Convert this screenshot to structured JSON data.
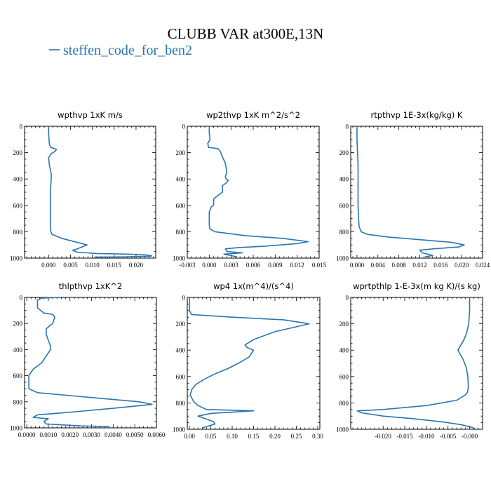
{
  "figure": {
    "title": "CLUBB VAR at300E,13N",
    "legend_label": "steffen_code_for_ben2",
    "line_color": "#2a75b0"
  },
  "chart_data": [
    {
      "type": "line",
      "title": "wpthvp  1xK m/s",
      "xlim": [
        -0.0055,
        0.0245
      ],
      "ylim": [
        0,
        1000
      ],
      "y_inverted": true,
      "xticks": [
        0.0,
        0.005,
        0.01,
        0.015,
        0.02
      ],
      "xtick_labels": [
        "0.000",
        "0.005",
        "0.010",
        "0.015",
        "0.020"
      ],
      "yticks": [
        0,
        200,
        400,
        600,
        800,
        1000
      ],
      "ytick_labels": [
        "0",
        "200",
        "400",
        "600",
        "800",
        "1000"
      ],
      "series": [
        {
          "x": [
            0.0,
            0.0,
            0.0001,
            0.0002,
            0.0005,
            0.0018,
            0.0015,
            0.0005,
            0.0,
            0.0002,
            0.0006,
            0.0006,
            0.0005,
            0.0004,
            0.0004,
            0.0004,
            0.0004,
            0.0005,
            0.0008,
            0.003,
            0.0065,
            0.0088,
            0.0065,
            0.0055,
            0.0065,
            0.011,
            0.018,
            0.022,
            0.0235,
            0.0235,
            0.0175,
            0.0105
          ],
          "y": [
            0,
            50,
            100,
            140,
            160,
            175,
            190,
            210,
            240,
            300,
            360,
            400,
            450,
            500,
            600,
            700,
            750,
            800,
            820,
            850,
            880,
            900,
            930,
            940,
            955,
            965,
            970,
            975,
            980,
            985,
            990,
            992
          ]
        }
      ]
    },
    {
      "type": "line",
      "title": "wp2thvp  1xK m^2/s^2",
      "xlim": [
        -0.003,
        0.015
      ],
      "ylim": [
        0,
        1000
      ],
      "y_inverted": true,
      "xticks": [
        -0.003,
        0.0,
        0.003,
        0.006,
        0.009,
        0.012,
        0.015
      ],
      "xtick_labels": [
        "-0.003",
        "0.000",
        "0.003",
        "0.006",
        "0.009",
        "0.012",
        "0.015"
      ],
      "yticks": [
        0,
        200,
        400,
        600,
        800,
        1000
      ],
      "ytick_labels": [
        "0",
        "200",
        "400",
        "600",
        "800",
        "1000"
      ],
      "series": [
        {
          "x": [
            0.0,
            0.0,
            0.0001,
            -0.0002,
            -0.0001,
            0.0012,
            0.0015,
            0.0017,
            0.0022,
            0.0024,
            0.0022,
            0.0023,
            0.0026,
            0.0023,
            0.0018,
            0.0018,
            0.0006,
            0.0006,
            0.0003,
            0.0,
            0.0,
            0.0,
            0.0001,
            0.0008,
            0.005,
            0.01,
            0.0135,
            0.012,
            0.0075,
            0.004,
            0.0022,
            0.0024,
            0.0045,
            0.002,
            0.0038
          ],
          "y": [
            0,
            50,
            100,
            130,
            160,
            170,
            190,
            220,
            280,
            350,
            380,
            400,
            410,
            430,
            450,
            500,
            550,
            600,
            610,
            650,
            700,
            750,
            780,
            800,
            830,
            850,
            875,
            890,
            910,
            920,
            930,
            950,
            960,
            970,
            990
          ]
        }
      ]
    },
    {
      "type": "line",
      "title": "rtpthvp  1E-3x(kg/kg) K",
      "xlim": [
        -0.0012,
        0.024
      ],
      "ylim": [
        0,
        1000
      ],
      "y_inverted": true,
      "xticks": [
        0.0,
        0.004,
        0.008,
        0.012,
        0.016,
        0.02,
        0.024
      ],
      "xtick_labels": [
        "0.000",
        "0.004",
        "0.008",
        "0.012",
        "0.016",
        "0.020",
        "0.024"
      ],
      "yticks": [
        0,
        200,
        400,
        600,
        800,
        1000
      ],
      "ytick_labels": [
        "0",
        "200",
        "400",
        "600",
        "800",
        "1000"
      ],
      "series": [
        {
          "x": [
            0.0,
            0.0,
            0.0001,
            0.0002,
            0.0002,
            0.0002,
            0.0002,
            0.0003,
            0.0004,
            0.0008,
            0.002,
            0.006,
            0.012,
            0.018,
            0.0205,
            0.0195,
            0.0145,
            0.012,
            0.0125,
            0.0145,
            0.013
          ],
          "y": [
            0,
            100,
            200,
            300,
            400,
            500,
            600,
            700,
            760,
            800,
            820,
            840,
            860,
            880,
            900,
            915,
            930,
            940,
            960,
            980,
            990
          ]
        }
      ]
    },
    {
      "type": "line",
      "title": "thlpthvp  1xK^2",
      "xlim": [
        -0.0001,
        0.006
      ],
      "ylim": [
        0,
        1000
      ],
      "y_inverted": true,
      "xticks": [
        0.0,
        0.001,
        0.002,
        0.003,
        0.004,
        0.005,
        0.006
      ],
      "xtick_labels": [
        "0.0000",
        "0.0010",
        "0.0020",
        "0.0030",
        "0.0040",
        "0.0050",
        "0.0060"
      ],
      "yticks": [
        0,
        200,
        400,
        600,
        800,
        1000
      ],
      "ytick_labels": [
        "0",
        "200",
        "400",
        "600",
        "800",
        "1000"
      ],
      "series": [
        {
          "x": [
            0.0015,
            0.0007,
            0.0005,
            0.0005,
            0.0008,
            0.0012,
            0.0013,
            0.0012,
            0.0009,
            0.0009,
            0.001,
            0.0011,
            0.0011,
            0.0009,
            0.0007,
            0.0003,
            0.0001,
            0.0001,
            0.0005,
            0.0025,
            0.0052,
            0.0058,
            0.004,
            0.002,
            0.0005,
            0.0003,
            0.001,
            0.0008,
            0.0009,
            0.0025,
            0.0038
          ],
          "y": [
            0,
            5,
            20,
            80,
            120,
            130,
            150,
            200,
            240,
            280,
            330,
            370,
            400,
            450,
            500,
            550,
            600,
            700,
            730,
            760,
            800,
            820,
            850,
            880,
            900,
            920,
            930,
            950,
            970,
            985,
            990
          ]
        }
      ]
    },
    {
      "type": "line",
      "title": "wp4  1x(m^4)/(s^4)",
      "xlim": [
        -0.005,
        0.305
      ],
      "ylim": [
        0,
        1000
      ],
      "y_inverted": true,
      "xticks": [
        0.0,
        0.05,
        0.1,
        0.15,
        0.2,
        0.25,
        0.3
      ],
      "xtick_labels": [
        "0.00",
        "0.05",
        "0.10",
        "0.15",
        "0.20",
        "0.25",
        "0.30"
      ],
      "yticks": [
        0,
        200,
        400,
        600,
        800,
        1000
      ],
      "ytick_labels": [
        "0",
        "200",
        "400",
        "600",
        "800",
        "1000"
      ],
      "series": [
        {
          "x": [
            0.0,
            0.0,
            0.0,
            0.005,
            0.1,
            0.22,
            0.28,
            0.2,
            0.15,
            0.13,
            0.135,
            0.15,
            0.14,
            0.12,
            0.09,
            0.06,
            0.035,
            0.015,
            0.005,
            0.002,
            0.005,
            0.01,
            0.02,
            0.04,
            0.15,
            0.1,
            0.05,
            0.02,
            0.055,
            0.06,
            0.03
          ],
          "y": [
            0,
            60,
            100,
            130,
            150,
            170,
            200,
            260,
            320,
            360,
            380,
            400,
            450,
            490,
            540,
            580,
            620,
            660,
            700,
            740,
            760,
            790,
            820,
            850,
            860,
            870,
            880,
            900,
            940,
            960,
            990
          ]
        }
      ]
    },
    {
      "type": "line",
      "title": "wprtpthlp  1-E-3x(m kg K)/(s kg)",
      "xlim": [
        -0.0275,
        0.003
      ],
      "ylim": [
        0,
        1000
      ],
      "y_inverted": true,
      "xticks": [
        -0.02,
        -0.015,
        -0.01,
        -0.005,
        0.0
      ],
      "xtick_labels": [
        "-0.020",
        "-0.015",
        "-0.010",
        "-0.005",
        "-0.000"
      ],
      "yticks": [
        0,
        200,
        400,
        600,
        800,
        1000
      ],
      "ytick_labels": [
        "0",
        "200",
        "400",
        "600",
        "800",
        "1000"
      ],
      "series": [
        {
          "x": [
            0.0,
            0.0,
            -0.0002,
            -0.0007,
            -0.0013,
            -0.0022,
            -0.0027,
            -0.0022,
            -0.0015,
            -0.0008,
            -0.0004,
            -0.0003,
            -0.0005,
            -0.001,
            -0.003,
            -0.01,
            -0.02,
            -0.026,
            -0.025,
            -0.02,
            -0.013,
            -0.006,
            -0.002,
            0.0005,
            0.0012
          ],
          "y": [
            0,
            100,
            200,
            270,
            320,
            370,
            400,
            430,
            470,
            530,
            600,
            680,
            720,
            740,
            780,
            820,
            850,
            860,
            875,
            900,
            920,
            945,
            965,
            985,
            995
          ]
        }
      ]
    }
  ]
}
